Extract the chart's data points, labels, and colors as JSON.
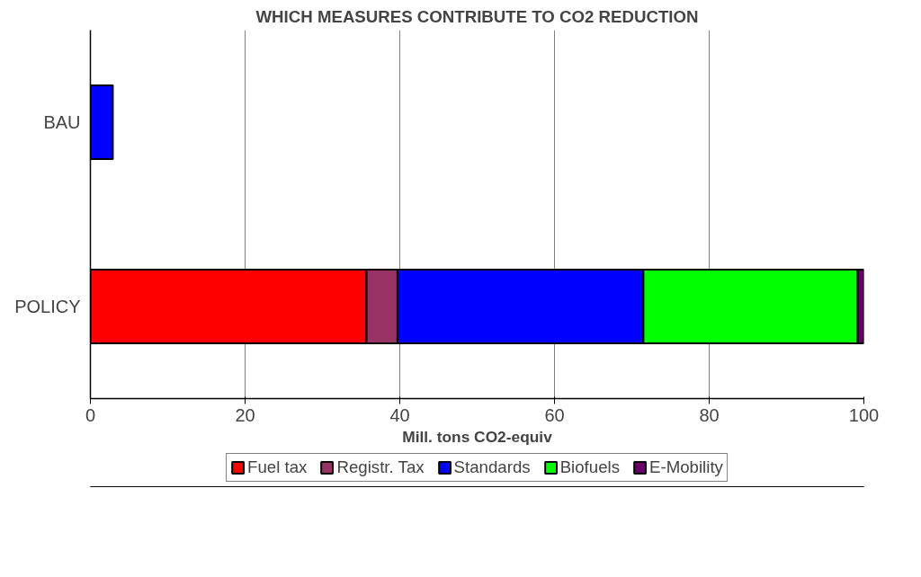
{
  "chart_data": {
    "type": "bar",
    "orientation": "horizontal",
    "stacked": true,
    "title": "WHICH MEASURES CONTRIBUTE TO CO2 REDUCTION",
    "xlabel": "Mill. tons CO2-equiv",
    "categories": [
      "BAU",
      "POLICY"
    ],
    "series": [
      {
        "name": "Fuel tax",
        "color": "#ff0000",
        "values": [
          0,
          35.7
        ]
      },
      {
        "name": "Registr. Tax",
        "color": "#993366",
        "values": [
          0,
          4.0
        ]
      },
      {
        "name": "Standards",
        "color": "#0000ff",
        "values": [
          2.9,
          31.8
        ]
      },
      {
        "name": "Biofuels",
        "color": "#00ff00",
        "values": [
          0,
          27.7
        ]
      },
      {
        "name": "E-Mobility",
        "color": "#660066",
        "values": [
          0,
          0.8
        ]
      }
    ],
    "xlim": [
      0,
      100
    ],
    "xticks": [
      0,
      20,
      40,
      60,
      80,
      100
    ],
    "grid": "x",
    "legend": "bottom"
  }
}
